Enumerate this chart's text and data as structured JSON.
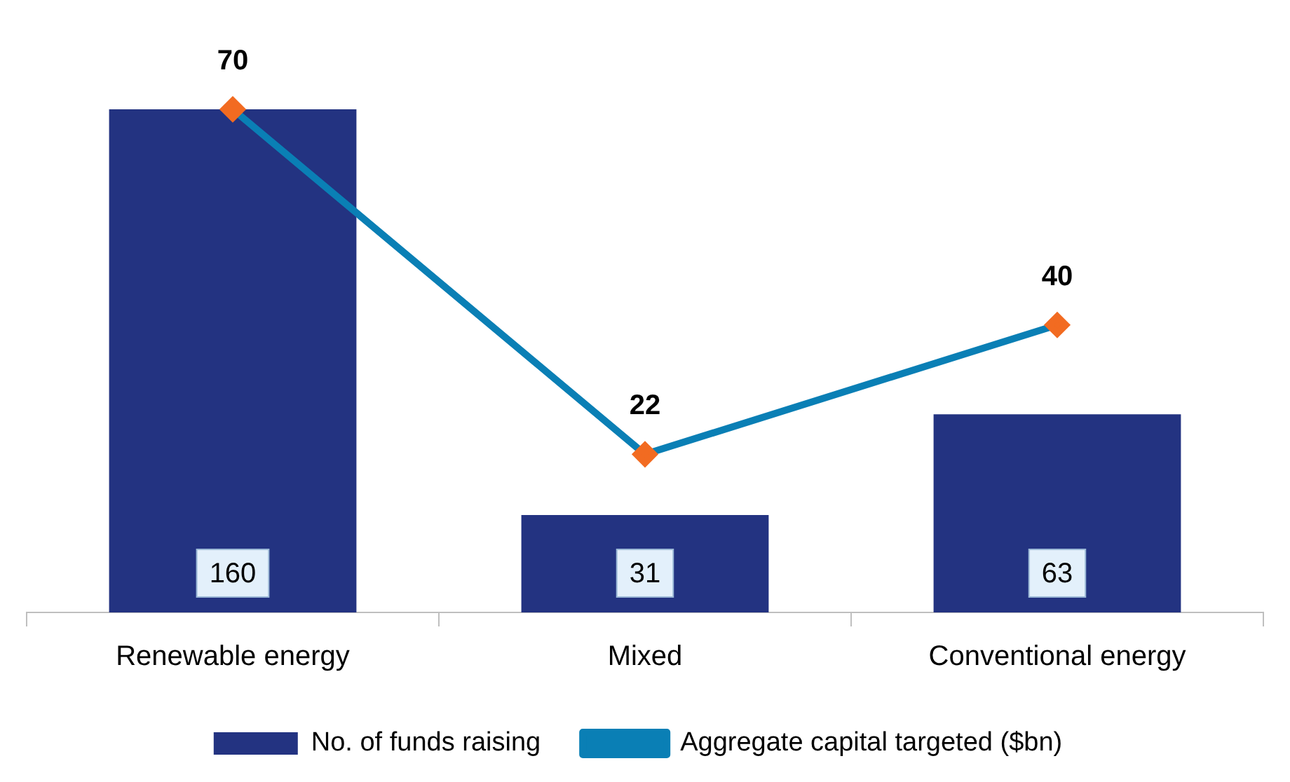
{
  "chart_data": {
    "type": "bar",
    "categories": [
      "Renewable energy",
      "Mixed",
      "Conventional energy"
    ],
    "series": [
      {
        "name": "No. of funds raising",
        "color": "#233381",
        "values": [
          160,
          31,
          63
        ]
      },
      {
        "name": "Aggregate capital targeted ($bn)",
        "type": "line",
        "axis": "y2",
        "color": "#0a7fb5",
        "values": [
          70,
          22,
          40
        ]
      }
    ],
    "tick_labels": "x",
    "grid": false,
    "legend": "bottom",
    "marker": "diamond",
    "data_labels": true
  }
}
